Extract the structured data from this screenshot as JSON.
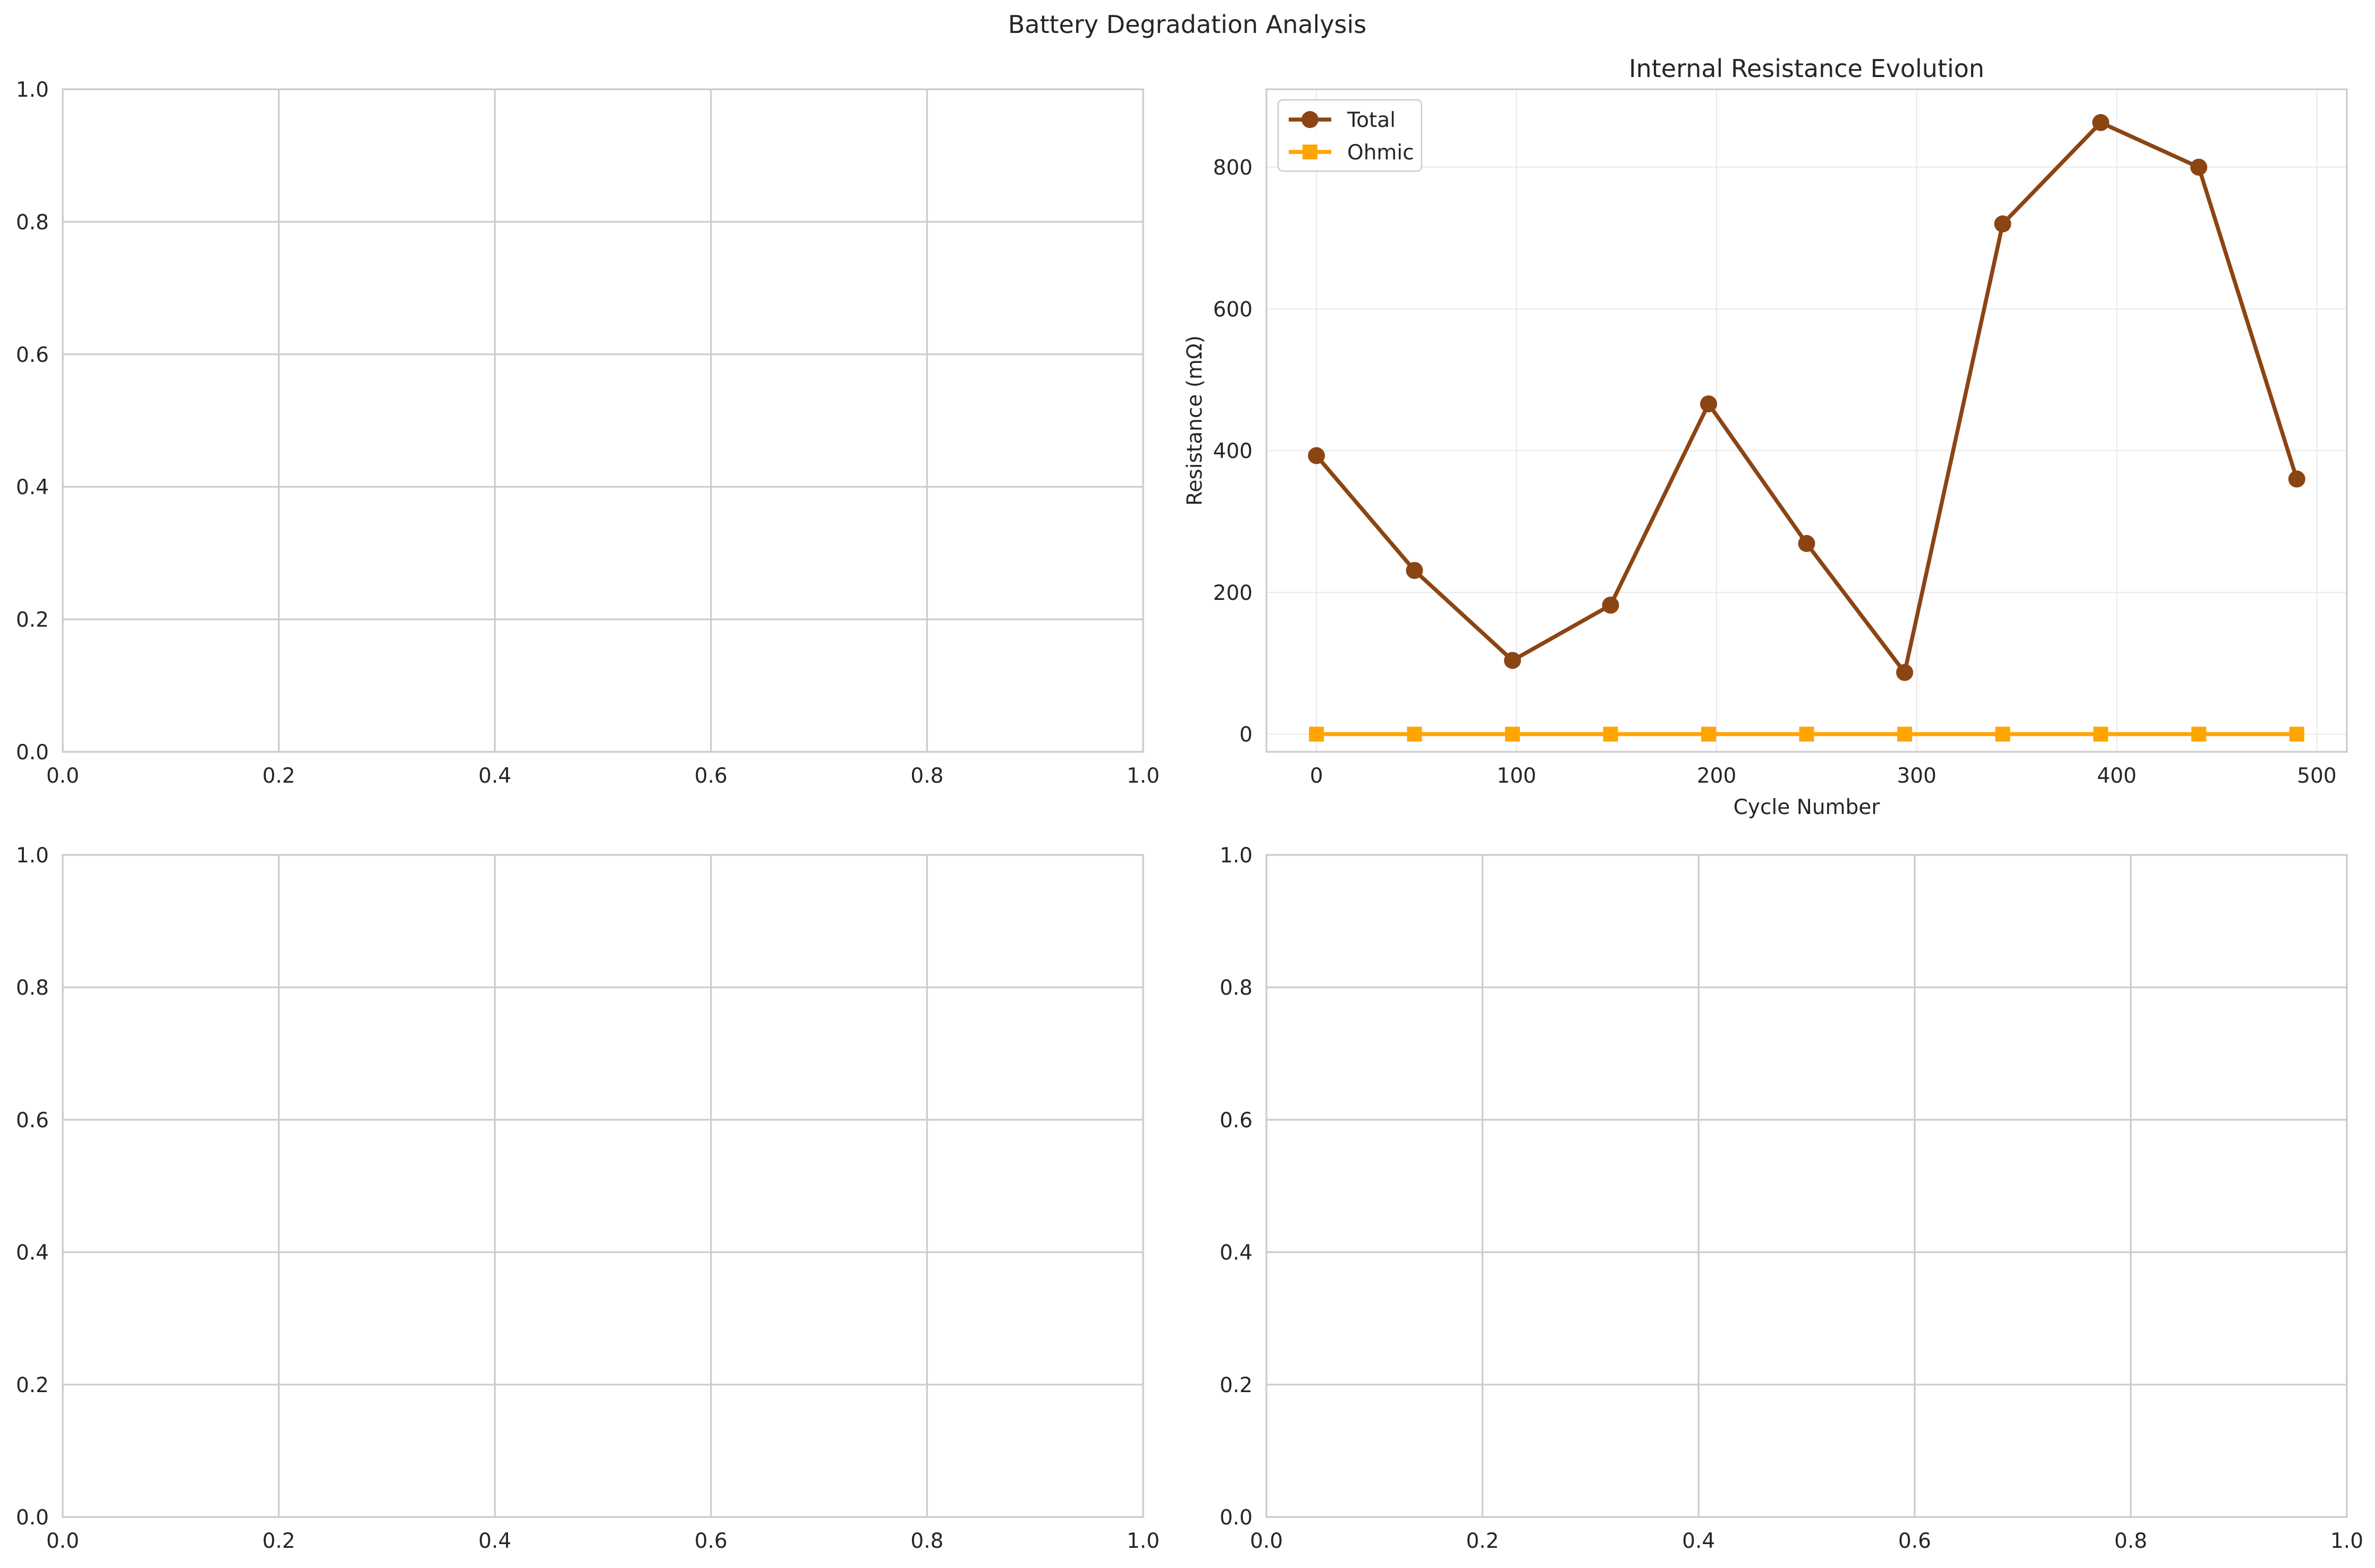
{
  "figure": {
    "title": "Battery Degradation Analysis"
  },
  "chart_data": [
    {
      "panel": "top-left",
      "type": "line",
      "title": "",
      "xlabel": "",
      "ylabel": "",
      "xlim": [
        0,
        1
      ],
      "ylim": [
        0,
        1
      ],
      "xticks": [
        "0.0",
        "0.2",
        "0.4",
        "0.6",
        "0.8",
        "1.0"
      ],
      "yticks": [
        "0.0",
        "0.2",
        "0.4",
        "0.6",
        "0.8",
        "1.0"
      ],
      "grid": true,
      "series": []
    },
    {
      "panel": "top-right",
      "type": "line",
      "title": "Internal Resistance Evolution",
      "xlabel": "Cycle Number",
      "ylabel": "Resistance (mΩ)",
      "xlim": [
        -25,
        515
      ],
      "ylim": [
        -25,
        910
      ],
      "xticks": [
        "0",
        "100",
        "200",
        "300",
        "400",
        "500"
      ],
      "yticks": [
        "0",
        "200",
        "400",
        "600",
        "800"
      ],
      "grid": true,
      "legend": "top-left",
      "x": [
        0,
        49,
        98,
        147,
        196,
        245,
        294,
        343,
        392,
        441,
        490
      ],
      "series": [
        {
          "name": "Total",
          "color": "#8B4513",
          "marker": "circle",
          "values": [
            393,
            231,
            104,
            182,
            466,
            269,
            87,
            720,
            863,
            800,
            360
          ]
        },
        {
          "name": "Ohmic",
          "color": "#FFA500",
          "marker": "square",
          "values": [
            0,
            0,
            0,
            0,
            0,
            0,
            0,
            0,
            0,
            0,
            0
          ]
        }
      ]
    },
    {
      "panel": "bottom-left",
      "type": "line",
      "title": "",
      "xlabel": "",
      "ylabel": "",
      "xlim": [
        0,
        1
      ],
      "ylim": [
        0,
        1
      ],
      "xticks": [
        "0.0",
        "0.2",
        "0.4",
        "0.6",
        "0.8",
        "1.0"
      ],
      "yticks": [
        "0.0",
        "0.2",
        "0.4",
        "0.6",
        "0.8",
        "1.0"
      ],
      "grid": true,
      "series": []
    },
    {
      "panel": "bottom-right",
      "type": "line",
      "title": "",
      "xlabel": "",
      "ylabel": "",
      "xlim": [
        0,
        1
      ],
      "ylim": [
        0,
        1
      ],
      "xticks": [
        "0.0",
        "0.2",
        "0.4",
        "0.6",
        "0.8",
        "1.0"
      ],
      "yticks": [
        "0.0",
        "0.2",
        "0.4",
        "0.6",
        "0.8",
        "1.0"
      ],
      "grid": true,
      "series": []
    }
  ]
}
